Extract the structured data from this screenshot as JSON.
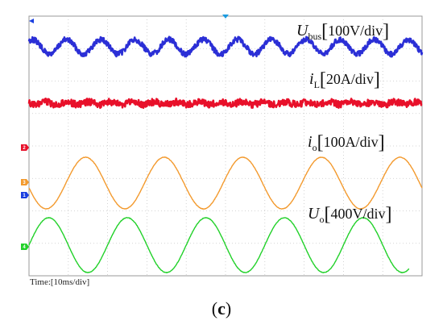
{
  "chart_data": {
    "type": "line",
    "time_scale": "Time:[10ms/div]",
    "grid": true,
    "divisions": {
      "x": 10,
      "y": 8
    },
    "series": [
      {
        "name": "U",
        "subscript": "bus",
        "scale": "100V/div",
        "color": "#2b2fd6",
        "marker": "",
        "cycles_on_screen": 11.5,
        "noise": "high"
      },
      {
        "name": "i",
        "subscript": "L",
        "scale": "20A/div",
        "color": "#e8102a",
        "marker": "",
        "cycles_on_screen": 0,
        "noise": "high"
      },
      {
        "name": "i",
        "subscript": "o",
        "scale": "100A/div",
        "color": "#f39a2e",
        "marker": "",
        "cycles_on_screen": 5,
        "noise": "low"
      },
      {
        "name": "U",
        "subscript": "o",
        "scale": "400V/div",
        "color": "#22d12a",
        "marker": "",
        "cycles_on_screen": 5,
        "noise": "low"
      }
    ]
  },
  "labels": {
    "ubus": {
      "symbol": "U",
      "sub": "bus",
      "open": "[",
      "scale": "100V/div",
      "close": "]"
    },
    "il": {
      "symbol": "i",
      "sub": "L",
      "open": "[",
      "scale": "20A/div",
      "close": "]"
    },
    "io": {
      "symbol": "i",
      "sub": "o",
      "open": "[",
      "scale": "100A/div",
      "close": "]"
    },
    "uo": {
      "symbol": "U",
      "sub": "o",
      "open": "[",
      "scale": "400V/div",
      "close": "]"
    }
  },
  "time_label": "Time:[10ms/div]",
  "caption": {
    "open": "(",
    "letter": "c",
    "close": ")"
  },
  "markers": {
    "ch1": "1",
    "ch2": "2",
    "ch3": "3",
    "ch4": "4",
    "colors": {
      "ch1": "#1a3fe0",
      "ch2": "#e8102a",
      "ch3": "#f39a2e",
      "ch4": "#22d12a"
    }
  }
}
